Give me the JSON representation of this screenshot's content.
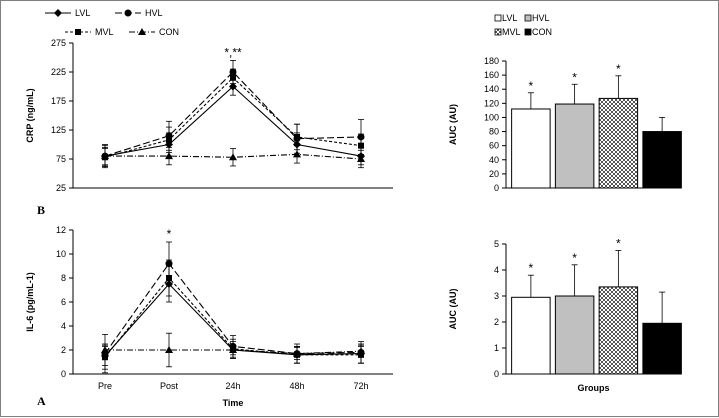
{
  "chart_data": [
    {
      "type": "line",
      "panel_label": "",
      "xlabel": "",
      "ylabel": "CRP (ng/mL)",
      "categories": [
        "Pre",
        "Post",
        "24h",
        "48h",
        "72h"
      ],
      "ylim": [
        25,
        275
      ],
      "yticks": [
        25,
        75,
        125,
        175,
        225,
        275
      ],
      "series": [
        {
          "name": "LVL",
          "marker": "diamond",
          "dash": "solid",
          "values": [
            80,
            100,
            200,
            100,
            80
          ],
          "errors": [
            15,
            20,
            15,
            20,
            15
          ]
        },
        {
          "name": "HVL",
          "marker": "circle",
          "dash": "long-dash",
          "values": [
            80,
            115,
            225,
            110,
            113
          ],
          "errors": [
            18,
            25,
            20,
            25,
            30
          ]
        },
        {
          "name": "MVL",
          "marker": "square",
          "dash": "short-dash",
          "values": [
            78,
            108,
            215,
            113,
            98
          ],
          "errors": [
            15,
            22,
            15,
            22,
            20
          ]
        },
        {
          "name": "CON",
          "marker": "triangle",
          "dash": "dash-dot",
          "values": [
            80,
            80,
            78,
            83,
            75
          ],
          "errors": [
            20,
            15,
            15,
            15,
            15
          ]
        }
      ],
      "annotations": [
        {
          "category": "24h",
          "text": "*,**"
        }
      ]
    },
    {
      "type": "bar",
      "ylabel": "AUC (AU)",
      "xlabel": "",
      "categories": [
        "LVL",
        "HVL",
        "MVL",
        "CON"
      ],
      "values": [
        112,
        119,
        127,
        80
      ],
      "errors": [
        23,
        28,
        32,
        20
      ],
      "ylim": [
        0,
        180
      ],
      "yticks": [
        0,
        20,
        40,
        60,
        80,
        100,
        120,
        140,
        160,
        180
      ],
      "colors": [
        "#ffffff",
        "#c0c0c0",
        "pattern",
        "#000000"
      ],
      "star_labels": [
        "*",
        "*",
        "*",
        ""
      ],
      "legend": [
        "LVL",
        "HVL",
        "MVL",
        "CON"
      ]
    },
    {
      "type": "line",
      "panel_label": "B",
      "xlabel": "Time",
      "ylabel": "IL-6 (pg/mL-1)",
      "categories": [
        "Pre",
        "Post",
        "24h",
        "48h",
        "72h"
      ],
      "ylim": [
        0,
        12
      ],
      "yticks": [
        0,
        2,
        4,
        6,
        8,
        10,
        12
      ],
      "series": [
        {
          "name": "LVL",
          "marker": "diamond",
          "dash": "solid",
          "values": [
            1.5,
            7.5,
            2.0,
            1.6,
            1.7
          ],
          "errors": [
            0.8,
            1.5,
            0.7,
            0.7,
            0.8
          ]
        },
        {
          "name": "HVL",
          "marker": "circle",
          "dash": "long-dash",
          "values": [
            1.7,
            9.2,
            2.3,
            1.7,
            1.8
          ],
          "errors": [
            1.6,
            1.8,
            0.9,
            0.8,
            0.9
          ]
        },
        {
          "name": "MVL",
          "marker": "square",
          "dash": "short-dash",
          "values": [
            1.4,
            8.0,
            2.1,
            1.6,
            1.6
          ],
          "errors": [
            1.0,
            1.5,
            0.8,
            0.7,
            0.7
          ]
        },
        {
          "name": "CON",
          "marker": "triangle",
          "dash": "dash-dot",
          "values": [
            2.0,
            2.0,
            2.0,
            1.7,
            1.9
          ],
          "errors": [
            0.5,
            1.4,
            0.4,
            0.5,
            0.5
          ]
        }
      ],
      "annotations": [
        {
          "category": "Post",
          "text": "*"
        }
      ]
    },
    {
      "type": "bar",
      "ylabel": "AUC (AU)",
      "xlabel": "Groups",
      "categories": [
        "LVL",
        "HVL",
        "MVL",
        "CON"
      ],
      "values": [
        2.95,
        3.0,
        3.35,
        1.95
      ],
      "errors": [
        0.85,
        1.2,
        1.4,
        1.2
      ],
      "ylim": [
        0,
        5
      ],
      "yticks": [
        0,
        1,
        2,
        3,
        4,
        5
      ],
      "colors": [
        "#ffffff",
        "#c0c0c0",
        "pattern",
        "#000000"
      ],
      "star_labels": [
        "*",
        "*",
        "*",
        ""
      ],
      "legend": []
    }
  ],
  "figure_label": "A"
}
